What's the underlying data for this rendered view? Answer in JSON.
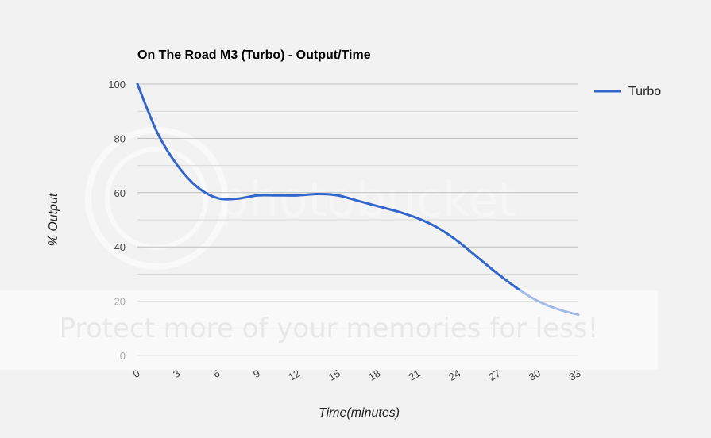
{
  "chart_data": {
    "type": "line",
    "title": "On The Road M3 (Turbo) - Output/Time",
    "xlabel": "Time(minutes)",
    "ylabel": "% Output",
    "x": [
      0,
      1.5,
      3,
      4.5,
      6,
      7.5,
      9,
      10.5,
      12,
      13.5,
      15,
      16.5,
      18,
      19.5,
      21,
      22.5,
      24,
      25.5,
      27,
      28.5,
      30,
      31.5,
      33
    ],
    "xticks": [
      "0",
      "3",
      "6",
      "9",
      "12",
      "15",
      "18",
      "21",
      "24",
      "27",
      "30",
      "33"
    ],
    "yticks": [
      "0",
      "20",
      "40",
      "60",
      "80",
      "100"
    ],
    "ylim": [
      0,
      100
    ],
    "xlim": [
      0,
      33
    ],
    "grid": true,
    "legend_position": "right",
    "series": [
      {
        "name": "Turbo",
        "color": "#3366cc",
        "values": [
          100,
          82,
          70,
          62,
          58,
          57.8,
          59,
          59,
          59,
          59.5,
          59,
          57,
          55,
          53,
          50.5,
          47,
          42,
          36,
          30,
          24.5,
          20,
          17,
          15
        ]
      }
    ]
  },
  "watermark": {
    "brand": "photobucket",
    "banner": "Protect more of your memories for less!"
  }
}
